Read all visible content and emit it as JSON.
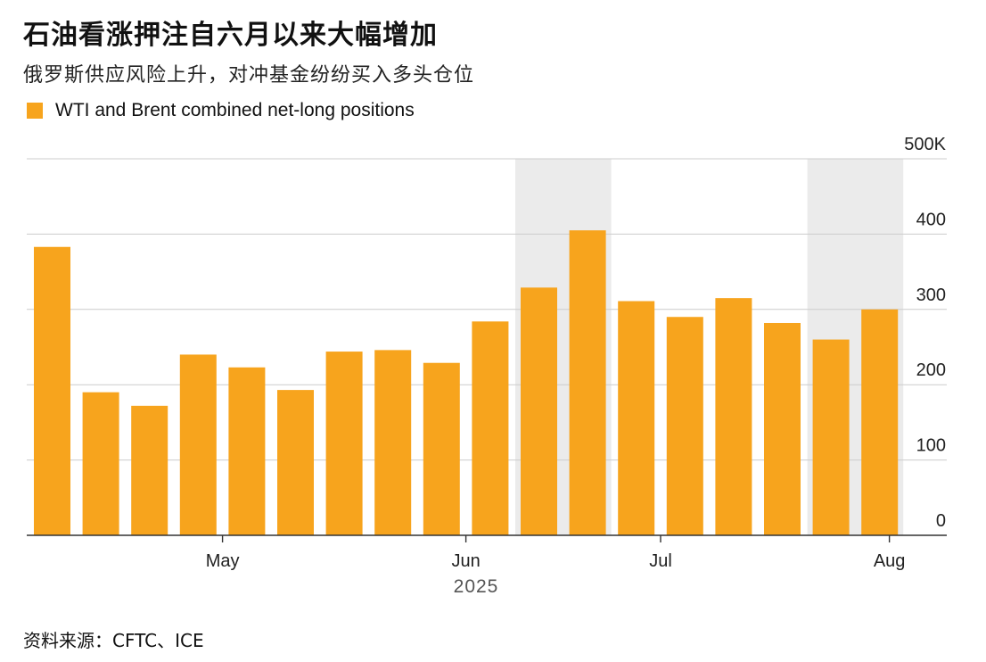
{
  "header": {
    "title": "石油看涨押注自六月以来大幅增加",
    "subtitle": "俄罗斯供应风险上升，对冲基金纷纷买入多头仓位"
  },
  "source": "资料来源：CFTC、ICE",
  "colors": {
    "bar": "#f7a41d",
    "shade": "#ebebeb",
    "grid": "#cccccc",
    "axis": "#333333"
  },
  "chart_data": {
    "type": "bar",
    "series": [
      {
        "name": "WTI and Brent combined net-long positions",
        "values": [
          383,
          190,
          172,
          240,
          223,
          193,
          244,
          246,
          229,
          284,
          329,
          405,
          311,
          290,
          315,
          282,
          260,
          300
        ]
      }
    ],
    "ylim": [
      0,
      500
    ],
    "y_ticks": [
      "0",
      "100",
      "200",
      "300",
      "400",
      "500K"
    ],
    "x_tick_labels": [
      {
        "label": "May",
        "position": 3.5
      },
      {
        "label": "Jun",
        "position": 8.5
      },
      {
        "label": "Jul",
        "position": 12.5
      },
      {
        "label": "Aug",
        "position": 17.2
      }
    ],
    "x_group_label": "2025",
    "shaded_bars": [
      [
        10,
        11
      ],
      [
        16,
        17
      ]
    ],
    "legend": "top-left",
    "grid": true
  }
}
